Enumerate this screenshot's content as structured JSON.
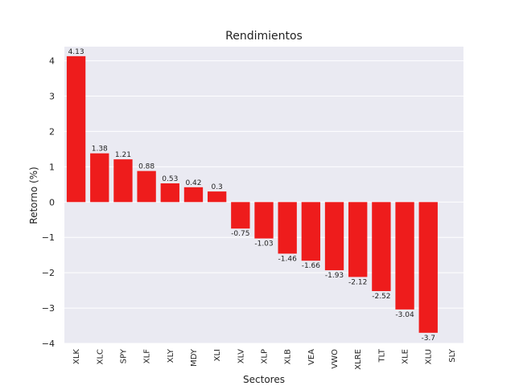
{
  "chart_data": {
    "type": "bar",
    "title": "Rendimientos",
    "xlabel": "Sectores",
    "ylabel": "Retorno (%)",
    "categories": [
      "XLK",
      "XLC",
      "SPY",
      "XLF",
      "XLY",
      "MDY",
      "XLI",
      "XLV",
      "XLP",
      "XLB",
      "VEA",
      "VWO",
      "XLRE",
      "TLT",
      "XLE",
      "XLU",
      "SLY"
    ],
    "values": [
      4.13,
      1.38,
      1.21,
      0.88,
      0.53,
      0.42,
      0.3,
      -0.75,
      -1.03,
      -1.46,
      -1.66,
      -1.93,
      -2.12,
      -2.52,
      -3.04,
      -3.7,
      null
    ],
    "data_labels": [
      "4.13",
      "1.38",
      "1.21",
      "0.88",
      "0.53",
      "0.42",
      "0.3",
      "-0.75",
      "-1.03",
      "-1.46",
      "-1.66",
      "-1.93",
      "-2.12",
      "-2.52",
      "-3.04",
      "-3.7",
      ""
    ],
    "yticks": [
      -4,
      -3,
      -2,
      -1,
      0,
      1,
      2,
      3,
      4
    ],
    "ytick_labels": [
      "−4",
      "−3",
      "−2",
      "−1",
      "0",
      "1",
      "2",
      "3",
      "4"
    ],
    "ylim": [
      -4.0,
      4.4
    ],
    "grid": true,
    "bar_color": "#ee1c1c",
    "background_color": "#eaeaf2",
    "grid_color": "#ffffff"
  }
}
